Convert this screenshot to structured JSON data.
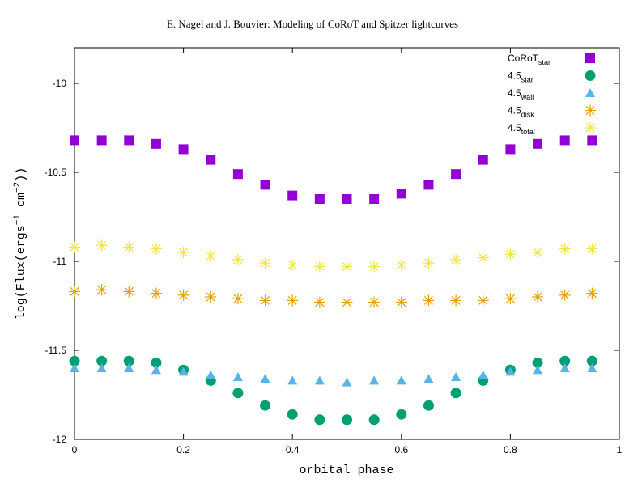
{
  "header": {
    "running_title": "E. Nagel and J. Bouvier: Modeling of CoRoT and Spitzer lightcurves"
  },
  "chart_data": {
    "type": "scatter",
    "xlabel": "orbital phase",
    "ylabel_parts": {
      "base": "log(Flux(ergs",
      "sup1": "−1",
      "mid": " cm",
      "sup2": "−2",
      "end": "))"
    },
    "xlim": [
      0,
      1
    ],
    "ylim": [
      -12,
      -9.8
    ],
    "xticks": [
      0,
      0.2,
      0.4,
      0.6,
      0.8,
      1
    ],
    "xtick_labels": [
      "0",
      "0.2",
      "0.4",
      "0.6",
      "0.8",
      "1"
    ],
    "yticks": [
      -12,
      -11.5,
      -11,
      -10.5,
      -10
    ],
    "ytick_labels": [
      "-12",
      "-11.5",
      "-11",
      "-10.5",
      "-10"
    ],
    "grid": false,
    "legend_position": "top-right",
    "x": [
      0,
      0.05,
      0.1,
      0.15,
      0.2,
      0.25,
      0.3,
      0.35,
      0.4,
      0.45,
      0.5,
      0.55,
      0.6,
      0.65,
      0.7,
      0.75,
      0.8,
      0.85,
      0.9,
      0.95
    ],
    "series": [
      {
        "name": "CoRoT",
        "name_sub": "star",
        "key": "corot",
        "marker": "square",
        "color": "#9400d3",
        "values": [
          -10.32,
          -10.32,
          -10.32,
          -10.34,
          -10.37,
          -10.43,
          -10.51,
          -10.57,
          -10.63,
          -10.65,
          -10.65,
          -10.65,
          -10.62,
          -10.57,
          -10.51,
          -10.43,
          -10.37,
          -10.34,
          -10.32,
          -10.32
        ]
      },
      {
        "name": "4.5",
        "name_sub": "star",
        "key": "star",
        "marker": "circle",
        "color": "#009e73",
        "values": [
          -11.56,
          -11.56,
          -11.56,
          -11.57,
          -11.61,
          -11.67,
          -11.74,
          -11.81,
          -11.86,
          -11.89,
          -11.89,
          -11.89,
          -11.86,
          -11.81,
          -11.74,
          -11.67,
          -11.61,
          -11.57,
          -11.56,
          -11.56
        ]
      },
      {
        "name": "4.5",
        "name_sub": "wall",
        "key": "wall",
        "marker": "triangle",
        "color": "#56b4e9",
        "values": [
          -11.6,
          -11.6,
          -11.6,
          -11.61,
          -11.62,
          -11.64,
          -11.65,
          -11.66,
          -11.67,
          -11.67,
          -11.68,
          -11.67,
          -11.67,
          -11.66,
          -11.65,
          -11.64,
          -11.62,
          -11.61,
          -11.6,
          -11.6
        ]
      },
      {
        "name": "4.5",
        "name_sub": "disk",
        "key": "disk",
        "marker": "asterisk",
        "color": "#e69f00",
        "values": [
          -11.17,
          -11.16,
          -11.17,
          -11.18,
          -11.19,
          -11.2,
          -11.21,
          -11.22,
          -11.22,
          -11.23,
          -11.23,
          -11.23,
          -11.23,
          -11.22,
          -11.22,
          -11.22,
          -11.21,
          -11.2,
          -11.19,
          -11.18
        ]
      },
      {
        "name": "4.5",
        "name_sub": "total",
        "key": "total",
        "marker": "asterisk",
        "color": "#f0e442",
        "values": [
          -10.92,
          -10.91,
          -10.92,
          -10.93,
          -10.95,
          -10.97,
          -10.99,
          -11.01,
          -11.02,
          -11.03,
          -11.03,
          -11.03,
          -11.02,
          -11.01,
          -10.99,
          -10.98,
          -10.96,
          -10.95,
          -10.93,
          -10.93
        ]
      }
    ]
  }
}
